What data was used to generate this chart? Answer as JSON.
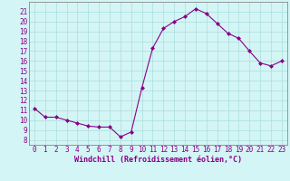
{
  "x": [
    0,
    1,
    2,
    3,
    4,
    5,
    6,
    7,
    8,
    9,
    10,
    11,
    12,
    13,
    14,
    15,
    16,
    17,
    18,
    19,
    20,
    21,
    22,
    23
  ],
  "y": [
    11.2,
    10.3,
    10.3,
    10.0,
    9.7,
    9.4,
    9.3,
    9.3,
    8.3,
    8.8,
    13.3,
    17.3,
    19.3,
    20.0,
    20.5,
    21.3,
    20.8,
    19.8,
    18.8,
    18.3,
    17.0,
    15.8,
    15.5,
    16.0
  ],
  "line_color": "#880088",
  "marker": "D",
  "marker_size": 2.0,
  "bg_color": "#d4f5f5",
  "grid_color": "#aadddd",
  "ylabel_ticks": [
    8,
    9,
    10,
    11,
    12,
    13,
    14,
    15,
    16,
    17,
    18,
    19,
    20,
    21
  ],
  "ylim": [
    7.5,
    22.0
  ],
  "xlim": [
    -0.5,
    23.5
  ],
  "xlabel": "Windchill (Refroidissement éolien,°C)",
  "xticks": [
    0,
    1,
    2,
    3,
    4,
    5,
    6,
    7,
    8,
    9,
    10,
    11,
    12,
    13,
    14,
    15,
    16,
    17,
    18,
    19,
    20,
    21,
    22,
    23
  ],
  "tick_fontsize": 5.5,
  "xlabel_fontsize": 6.0
}
